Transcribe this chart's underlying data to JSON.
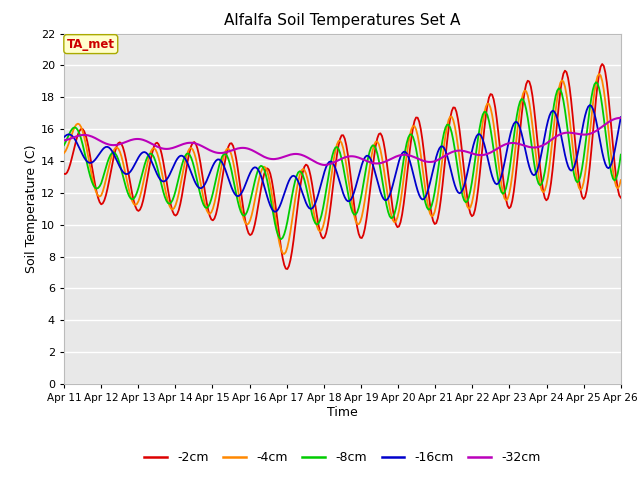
{
  "title": "Alfalfa Soil Temperatures Set A",
  "xlabel": "Time",
  "ylabel": "Soil Temperature (C)",
  "ylim": [
    0,
    22
  ],
  "yticks": [
    0,
    2,
    4,
    6,
    8,
    10,
    12,
    14,
    16,
    18,
    20,
    22
  ],
  "xtick_labels": [
    "Apr 11",
    "Apr 12",
    "Apr 13",
    "Apr 14",
    "Apr 15",
    "Apr 16",
    "Apr 17",
    "Apr 18",
    "Apr 19",
    "Apr 20",
    "Apr 21",
    "Apr 22",
    "Apr 23",
    "Apr 24",
    "Apr 25",
    "Apr 26"
  ],
  "fig_bg": "#ffffff",
  "plot_bg": "#e8e8e8",
  "grid_color": "#ffffff",
  "series_colors": {
    "-2cm": "#dd0000",
    "-4cm": "#ff8800",
    "-8cm": "#00cc00",
    "-16cm": "#0000cc",
    "-32cm": "#bb00bb"
  },
  "annotation_text": "TA_met",
  "annotation_color": "#cc0000",
  "annotation_bg": "#ffffcc",
  "annotation_border": "#aaaa00",
  "linewidth": 1.3
}
